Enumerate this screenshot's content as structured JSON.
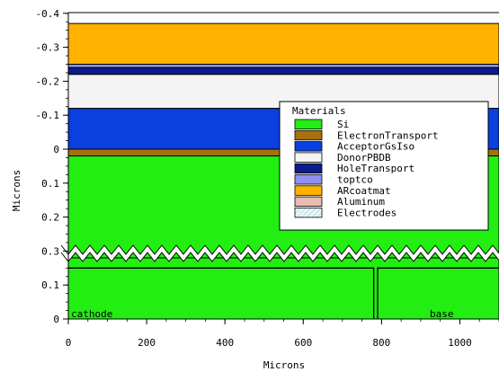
{
  "axes": {
    "x_label": "Microns",
    "y_label": "Microns",
    "x_ticks": [
      {
        "value": 0,
        "label": "0"
      },
      {
        "value": 200,
        "label": "200"
      },
      {
        "value": 400,
        "label": "400"
      },
      {
        "value": 600,
        "label": "600"
      },
      {
        "value": 800,
        "label": "800"
      },
      {
        "value": 1000,
        "label": "1000"
      }
    ],
    "x_range": [
      0,
      1100
    ],
    "upper_y_ticks": [
      {
        "value": -0.4,
        "label": "-0.4"
      },
      {
        "value": -0.3,
        "label": "-0.3"
      },
      {
        "value": -0.2,
        "label": "-0.2"
      },
      {
        "value": -0.1,
        "label": "-0.1"
      },
      {
        "value": 0,
        "label": "0"
      },
      {
        "value": 0.1,
        "label": "0.1"
      },
      {
        "value": 0.2,
        "label": "0.2"
      },
      {
        "value": 0.3,
        "label": "0.3"
      }
    ],
    "lower_y_ticks": [
      {
        "value": 0.1,
        "label": "0.1"
      },
      {
        "value": 0,
        "label": "0"
      }
    ]
  },
  "materials": [
    {
      "name": "Si",
      "color": "#22ee11"
    },
    {
      "name": "ElectronTransport",
      "color": "#a8700c"
    },
    {
      "name": "AcceptorGsIso",
      "color": "#0a3fe0"
    },
    {
      "name": "DonorPBDB",
      "color": "#f4f4f4"
    },
    {
      "name": "HoleTransport",
      "color": "#0a1c8c"
    },
    {
      "name": "toptco",
      "color": "#9090f0"
    },
    {
      "name": "ARcoatmat",
      "color": "#ffb300"
    },
    {
      "name": "Aluminum",
      "color": "#e8bcb0"
    },
    {
      "name": "Electrodes",
      "color": "#d8f4f8"
    }
  ],
  "layers": [
    {
      "material": "ARcoatmat",
      "y_top": -0.37,
      "y_bottom": -0.25
    },
    {
      "material": "toptco",
      "y_top": -0.25,
      "y_bottom": -0.24
    },
    {
      "material": "HoleTransport",
      "y_top": -0.24,
      "y_bottom": -0.22
    },
    {
      "material": "DonorPBDB",
      "y_top": -0.22,
      "y_bottom": -0.12
    },
    {
      "material": "AcceptorGsIso",
      "y_top": -0.12,
      "y_bottom": 0.0
    },
    {
      "material": "ElectronTransport",
      "y_top": 0.0,
      "y_bottom": 0.02
    },
    {
      "material": "Si",
      "y_top": 0.02,
      "y_bottom": 0.3
    }
  ],
  "legend": {
    "title": "Materials"
  },
  "regions": {
    "cathode": {
      "label": "cathode",
      "x_start": 0,
      "x_end": 780
    },
    "base": {
      "label": "base",
      "x_start": 790,
      "x_end": 1100
    }
  }
}
